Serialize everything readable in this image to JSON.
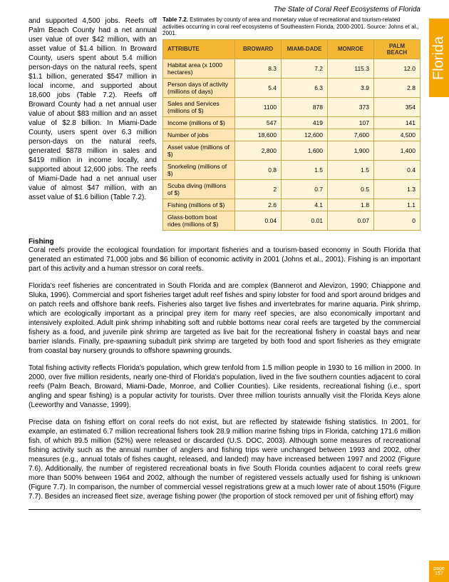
{
  "header": {
    "title": "The State of Coral Reef Ecosystems of Florida"
  },
  "sideTab": {
    "label": "Florida"
  },
  "pageNum": {
    "word": "page",
    "num": "157"
  },
  "leftCol": {
    "p1": "and supported 4,500 jobs. Reefs off Palm Beach County had a net annual user value of over $42 million, with an asset value of $1.4 billion. In Broward County, users spent about 5.4 million person-days on the natural reefs, spent $1.1 billion, generated $547 million in local income, and supported about 18,600 jobs (Table 7.2). Reefs off Broward County had a net annual user value of about $83 million and an asset value of $2.8 billion. In Miami-Dade County, users spent over 6.3 million person-days on the natural reefs, generated $878 million in sales and $419 million in income locally, and supported about 12,600 jobs. The reefs of Miami-Dade had a net annual user value of almost $47 million, with an asset value of $1.6 billion (Table 7.2)."
  },
  "table": {
    "caption_prefix": "Table 7.2.",
    "caption_rest": "  Estimates by county of area and monetary value of recreational and tourism-related activities occurring in coral reef ecosystems of Southeastern Florida, 2000-2001. Source:  Johns et al., 2001.",
    "headers": [
      "ATTRIBUTE",
      "BROWARD",
      "MIAMI-DADE",
      "MONROE",
      "PALM BEACH"
    ],
    "rows": [
      [
        "Habitat area (x 1000 hectares)",
        "8.3",
        "7.2",
        "115.3",
        "12.0"
      ],
      [
        "Person days of activity (millions of days)",
        "5.4",
        "6.3",
        "3.9",
        "2.8"
      ],
      [
        "Sales and Services (millions of $)",
        "1100",
        "878",
        "373",
        "354"
      ],
      [
        "Income (millions of $)",
        "547",
        "419",
        "107",
        "141"
      ],
      [
        "Number of jobs",
        "18,600",
        "12,600",
        "7,600",
        "4,500"
      ],
      [
        "Asset value (millions of $)",
        "2,800",
        "1,600",
        "1,900",
        "1,400"
      ],
      [
        "Snorkeling (millions of $)",
        "0.8",
        "1.5",
        "1.5",
        "0.4"
      ],
      [
        "Scuba diving (millions of $)",
        "2",
        "0.7",
        "0.5",
        "1.3"
      ],
      [
        "Fishing (millions of $)",
        "2.6",
        "4.1",
        "1.8",
        "1.1"
      ],
      [
        "Glass-bottom boat rides (millions of $)",
        "0.04",
        "0.01",
        "0.07",
        "0"
      ]
    ],
    "colWidths": [
      "28%",
      "18%",
      "18%",
      "18%",
      "18%"
    ]
  },
  "sections": {
    "fishingHead": "Fishing",
    "p2": "Coral reefs provide the ecological foundation for important fisheries and a tourism-based economy in South Florida that generated an estimated 71,000 jobs and $6 billion of economic activity in 2001 (Johns et al., 2001).  Fishing is an important part of this activity and a human stressor on coral reefs.",
    "p3": "Florida's reef fisheries are concentrated in South Florida and are complex (Bannerot and Alevizon, 1990; Chiappone and Sluka, 1996).  Commercial and sport fisheries target adult reef fishes and spiny lobster for food and sport around bridges and on patch reefs and offshore bank reefs.  Fisheries also target live fishes and invertebrates for marine aquaria.  Pink shrimp, which are ecologically important as a principal prey item for many reef species, are also economically important and intensively exploited.  Adult pink shrimp inhabiting soft and rubble bottoms near coral reefs are targeted by the commercial fishery as a food, and juvenile pink shrimp are targeted as live bait for the recreational fishery in coastal bays and near barrier islands.  Finally, pre-spawning subadult pink shrimp are targeted by both food and sport fisheries as they emigrate from coastal bay nursery grounds to offshore spawning grounds.",
    "p4": "Total fishing activity reflects Florida's population, which grew tenfold from 1.5 million people in 1930 to 16 million in 2000.  In 2000, over five million residents, nearly one-third of Florida's population, lived in the five southern counties adjacent to coral reefs (Palm Beach, Broward, Miami-Dade, Monroe, and Collier Counties). Like residents, recreational fishing (i.e., sport angling and spear fishing) is a popular activity for tourists.  Over three million tourists annually visit the Florida Keys alone (Leeworthy and Vanasse, 1999).",
    "p5": "Precise data on fishing effort on coral reefs do not exist, but are reflected by statewide fishing statistics.  In 2001, for example, an estimated 6.7 million recreational fishers took 28.9 million marine fishing trips in Florida, catching 171.6 million fish, of which 89.5 million (52%) were released or discarded (U.S. DOC, 2003).  Although some measures of recreational fishing activity such as the annual number of anglers and fishing trips were unchanged between 1993 and 2002, other measures (e.g., annual totals of fishes caught, released, and landed) may have increased between 1997 and 2002 (Figure 7.6).  Additionally, the number of registered recreational boats in five South Florida counties adjacent to coral reefs grew more than 500% between 1964 and 2002, although the number of registered vessels actually used for fishing is unknown (Figure 7.7).  In comparison, the number of commercial vessel registrations grew at a much lower rate of about 150% (Figure 7.7).  Besides an increased fleet size, average fishing power (the proportion of stock removed per unit of fishing effort) may"
  }
}
